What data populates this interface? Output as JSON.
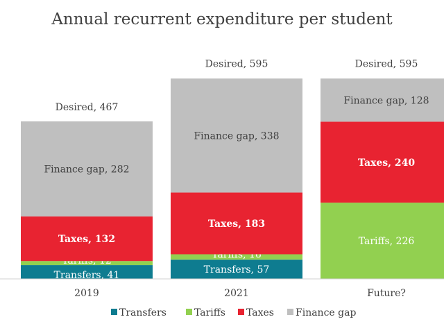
{
  "chart_data": {
    "type": "bar",
    "stacked": true,
    "title": "Annual recurrent expenditure per student",
    "categories": [
      "2019",
      "2021",
      "Future?"
    ],
    "series": [
      {
        "name": "Transfers",
        "label": "Transfers",
        "color": "#0E7C90",
        "values": [
          41,
          57,
          0
        ]
      },
      {
        "name": "Tariffs",
        "label": "Tariffs",
        "color": "#92D050",
        "values": [
          12,
          16,
          226
        ]
      },
      {
        "name": "Taxes",
        "label": "Taxes",
        "color": "#E82331",
        "values": [
          132,
          183,
          240
        ]
      },
      {
        "name": "Finance gap",
        "label": "Finance gap",
        "color": "#BFBFBF",
        "values": [
          282,
          338,
          128
        ]
      }
    ],
    "totals": {
      "label": "Desired",
      "values": [
        467,
        595,
        595
      ]
    },
    "ylim": [
      0,
      650
    ],
    "grid": false,
    "legend_position": "bottom"
  }
}
